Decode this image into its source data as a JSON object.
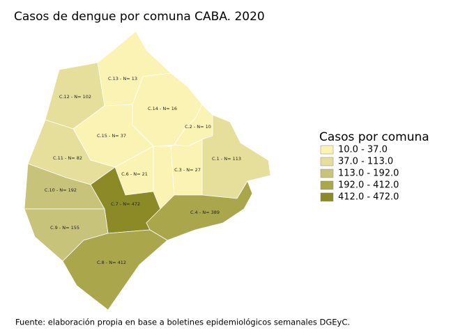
{
  "title": "Casos de dengue por comuna CABA. 2020",
  "legend": {
    "title": "Casos por comuna",
    "items": [
      {
        "label": "10.0 - 37.0",
        "color": "#fbf3b4"
      },
      {
        "label": "37.0 - 113.0",
        "color": "#e6df9c"
      },
      {
        "label": "113.0 - 192.0",
        "color": "#c8c37a"
      },
      {
        "label": "192.0 - 412.0",
        "color": "#a9a64c"
      },
      {
        "label": "412.0 - 472.0",
        "color": "#8b8a26"
      }
    ]
  },
  "comunas": [
    {
      "label": "C.13 - N= 13",
      "color": "#fbf3b4"
    },
    {
      "label": "C.14 - N= 16",
      "color": "#fbf3b4"
    },
    {
      "label": "C.12 - N= 102",
      "color": "#e6df9c"
    },
    {
      "label": "C.15 - N= 37",
      "color": "#fbf3b4"
    },
    {
      "label": "C.2 - N= 10",
      "color": "#fbf3b4"
    },
    {
      "label": "C.11 - N= 82",
      "color": "#e6df9c"
    },
    {
      "label": "C.1 - N= 113",
      "color": "#e6df9c"
    },
    {
      "label": "C.6 - N= 21",
      "color": "#fbf3b4"
    },
    {
      "label": "C.3 - N= 27",
      "color": "#fbf3b4"
    },
    {
      "label": "C.10 - N= 192",
      "color": "#c8c37a"
    },
    {
      "label": "C.7 - N= 472",
      "color": "#8b8a26"
    },
    {
      "label": "C.4 - N= 389",
      "color": "#a9a64c"
    },
    {
      "label": "C.9 - N= 155",
      "color": "#c8c37a"
    },
    {
      "label": "C.8 - N= 412",
      "color": "#a9a64c"
    }
  ],
  "source": "Fuente: elaboración propia en base a boletines epidemiológicos semanales DGEyC."
}
